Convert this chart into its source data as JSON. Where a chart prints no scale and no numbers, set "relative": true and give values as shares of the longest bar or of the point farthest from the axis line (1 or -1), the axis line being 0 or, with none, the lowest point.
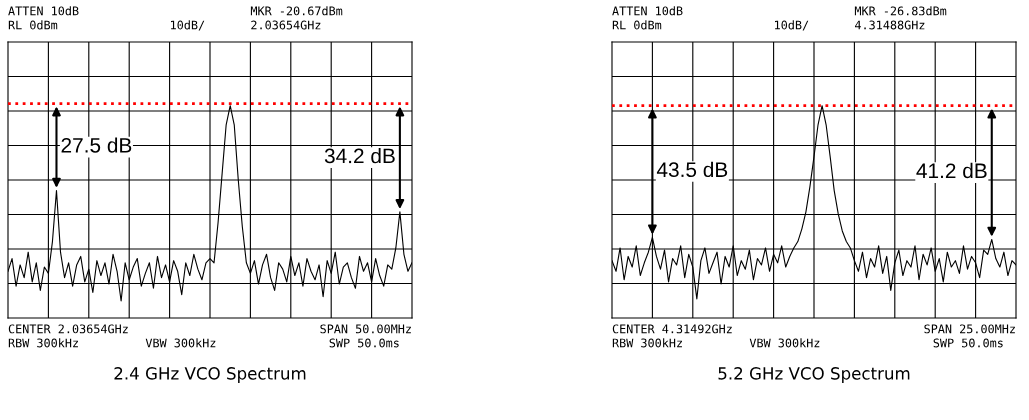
{
  "chart_data": [
    {
      "type": "line",
      "title": "2.4 GHz VCO Spectrum",
      "relative": true,
      "grid": true,
      "line_style": "solid",
      "categories": [
        null,
        null,
        null,
        null,
        null,
        null,
        null,
        null,
        null,
        null,
        null,
        null,
        null,
        null,
        null,
        null,
        null,
        null,
        null,
        null,
        null,
        null,
        null,
        null,
        null,
        null,
        null,
        null,
        null,
        null,
        null,
        null,
        null,
        null,
        null,
        null,
        null,
        null,
        null,
        null,
        null,
        null,
        null,
        null,
        null,
        null,
        null,
        null,
        null,
        null,
        null,
        null,
        null,
        null,
        null,
        null,
        null,
        null,
        null,
        null,
        null,
        null,
        null,
        null,
        null,
        null,
        null,
        null,
        null,
        null,
        null,
        null,
        null,
        null,
        null,
        null,
        null,
        null,
        null,
        null,
        null,
        null,
        null,
        null,
        null,
        null,
        null,
        null,
        null,
        null,
        null,
        null,
        null,
        null,
        null,
        null,
        null,
        null,
        null,
        null,
        null
      ],
      "series": [
        {
          "color": "#000000",
          "values": [
            0.22,
            0.28,
            0.15,
            0.25,
            0.19,
            0.31,
            0.17,
            0.26,
            0.13,
            0.24,
            0.21,
            0.36,
            0.6,
            0.31,
            0.19,
            0.26,
            0.15,
            0.25,
            0.29,
            0.17,
            0.23,
            0.12,
            0.27,
            0.2,
            0.26,
            0.16,
            0.3,
            0.22,
            0.08,
            0.26,
            0.18,
            0.24,
            0.28,
            0.15,
            0.21,
            0.26,
            0.14,
            0.29,
            0.19,
            0.25,
            0.17,
            0.27,
            0.22,
            0.11,
            0.26,
            0.2,
            0.3,
            0.23,
            0.18,
            0.26,
            0.28,
            0.26,
            0.45,
            0.68,
            0.91,
            1,
            0.91,
            0.65,
            0.43,
            0.26,
            0.21,
            0.27,
            0.16,
            0.25,
            0.3,
            0.19,
            0.13,
            0.26,
            0.23,
            0.17,
            0.29,
            0.2,
            0.26,
            0.15,
            0.28,
            0.22,
            0.18,
            0.25,
            0.1,
            0.27,
            0.21,
            0.31,
            0.16,
            0.24,
            0.26,
            0.19,
            0.14,
            0.29,
            0.22,
            0.26,
            0.17,
            0.28,
            0.2,
            0.15,
            0.25,
            0.23,
            0.33,
            0.5,
            0.3,
            0.22,
            0.26
          ]
        }
      ],
      "ref_lines": [
        {
          "axis": "y",
          "value": 1.01,
          "color": "#ff0000",
          "line_style": "dotted"
        }
      ],
      "annotations": [
        "ATTEN 10dB",
        "RL 0dBm",
        "10dB/",
        "MKR -20.67dBm",
        "2.03654GHz",
        "CENTER 2.03654GHz",
        "RBW 300kHz",
        "VBW 300kHz",
        "SPAN 50.00MHz",
        "SWP 50.0ms",
        "27.5 dB",
        "34.2 dB"
      ]
    },
    {
      "type": "line",
      "title": "5.2 GHz VCO Spectrum",
      "relative": true,
      "grid": true,
      "line_style": "solid",
      "categories": [
        null,
        null,
        null,
        null,
        null,
        null,
        null,
        null,
        null,
        null,
        null,
        null,
        null,
        null,
        null,
        null,
        null,
        null,
        null,
        null,
        null,
        null,
        null,
        null,
        null,
        null,
        null,
        null,
        null,
        null,
        null,
        null,
        null,
        null,
        null,
        null,
        null,
        null,
        null,
        null,
        null,
        null,
        null,
        null,
        null,
        null,
        null,
        null,
        null,
        null,
        null,
        null,
        null,
        null,
        null,
        null,
        null,
        null,
        null,
        null,
        null,
        null,
        null,
        null,
        null,
        null,
        null,
        null,
        null,
        null,
        null,
        null,
        null,
        null,
        null,
        null,
        null,
        null,
        null,
        null,
        null,
        null,
        null,
        null,
        null,
        null,
        null,
        null,
        null,
        null,
        null,
        null,
        null,
        null,
        null,
        null,
        null,
        null,
        null,
        null,
        null
      ],
      "series": [
        {
          "color": "#000000",
          "values": [
            0.27,
            0.22,
            0.33,
            0.18,
            0.29,
            0.24,
            0.34,
            0.2,
            0.26,
            0.31,
            0.38,
            0.29,
            0.23,
            0.32,
            0.17,
            0.28,
            0.25,
            0.34,
            0.19,
            0.3,
            0.24,
            0.09,
            0.27,
            0.33,
            0.21,
            0.26,
            0.31,
            0.16,
            0.29,
            0.24,
            0.34,
            0.2,
            0.27,
            0.23,
            0.32,
            0.18,
            0.28,
            0.25,
            0.33,
            0.22,
            0.3,
            0.26,
            0.34,
            0.24,
            0.29,
            0.33,
            0.36,
            0.42,
            0.5,
            0.62,
            0.76,
            0.91,
            1,
            0.91,
            0.76,
            0.6,
            0.49,
            0.41,
            0.36,
            0.33,
            0.27,
            0.22,
            0.31,
            0.19,
            0.28,
            0.24,
            0.34,
            0.21,
            0.29,
            0.13,
            0.26,
            0.32,
            0.2,
            0.27,
            0.24,
            0.34,
            0.18,
            0.3,
            0.25,
            0.33,
            0.22,
            0.28,
            0.17,
            0.31,
            0.24,
            0.27,
            0.21,
            0.34,
            0.23,
            0.29,
            0.26,
            0.19,
            0.32,
            0.3,
            0.37,
            0.28,
            0.24,
            0.31,
            0.2,
            0.27,
            0.25
          ]
        }
      ],
      "ref_lines": [
        {
          "axis": "y",
          "value": 1.0,
          "color": "#ff0000",
          "line_style": "dotted"
        }
      ],
      "annotations": [
        "ATTEN 10dB",
        "RL 0dBm",
        "10dB/",
        "MKR -26.83dBm",
        "4.31488GHz",
        "CENTER 4.31492GHz",
        "RBW 300kHz",
        "VBW 300kHz",
        "SPAN 25.00MHz",
        "SWP 50.0ms",
        "43.5 dB",
        "41.2 dB"
      ]
    }
  ]
}
